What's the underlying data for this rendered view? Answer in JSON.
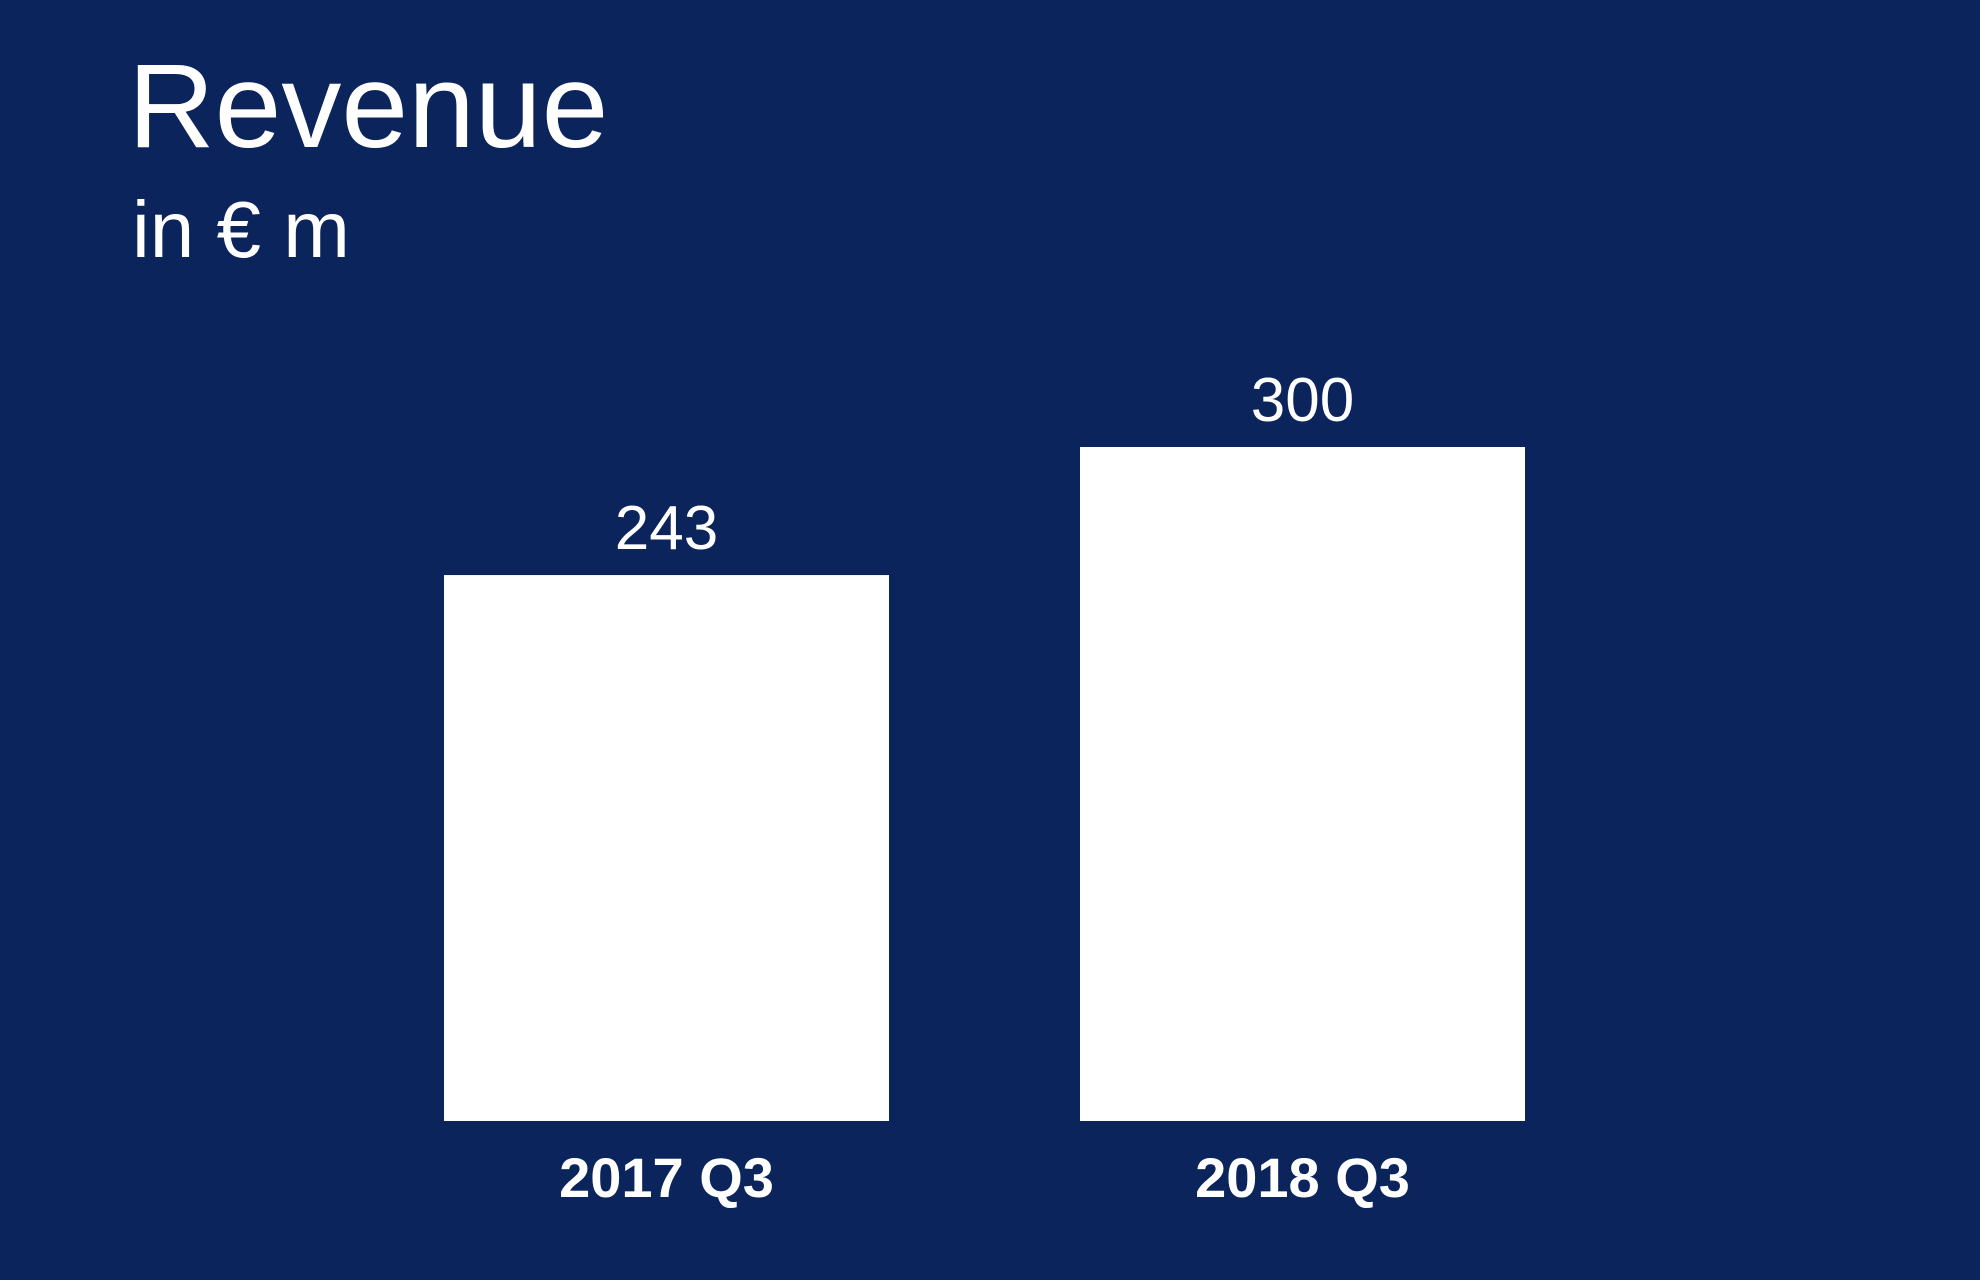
{
  "colors": {
    "background": "#0b245c",
    "bar": "#ffffff",
    "text": "#ffffff"
  },
  "chart_data": {
    "type": "bar",
    "title": "Revenue",
    "subtitle": "in € m",
    "categories": [
      "2017 Q3",
      "2018 Q3"
    ],
    "values": [
      243,
      300
    ],
    "data_labels": [
      "243",
      "300"
    ],
    "xlabel": "",
    "ylabel": "",
    "ylim": [
      0,
      300
    ],
    "grid": false,
    "legend": "none"
  }
}
